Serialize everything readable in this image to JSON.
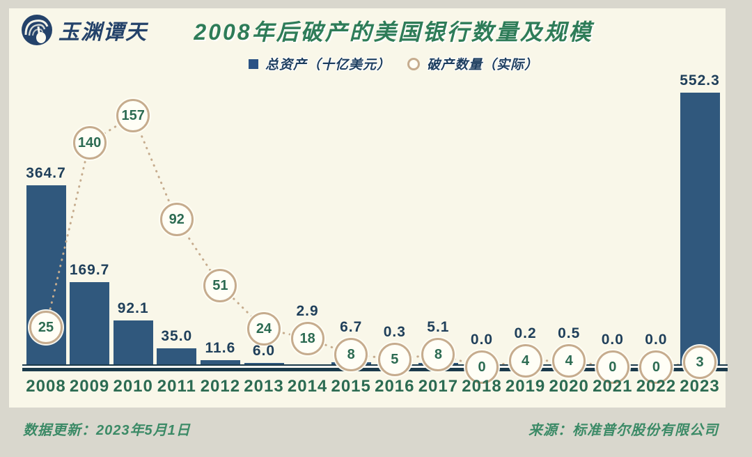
{
  "header": {
    "logo_text": "玉渊谭天",
    "title": "2008年后破产的美国银行数量及规模"
  },
  "legend": {
    "assets_label": "总资产（十亿美元）",
    "count_label": "破产数量（实际）"
  },
  "footer": {
    "updated_label": "数据更新：2023年5月1日",
    "source_label": "来源：标准普尔股份有限公司"
  },
  "colors": {
    "page_bg": "#d9d7cd",
    "card_bg": "#f9f7e9",
    "bar": "#30587d",
    "bar_label": "#1f3f5a",
    "green": "#2c6b52",
    "title_green": "#2e7c58",
    "footer_green": "#3b8a66",
    "tan": "#c6ac8e",
    "circle_fill": "#fffef6",
    "legend_navy": "#1d3e5f",
    "legend_square": "#2a5285",
    "axis": "#1b3a4b",
    "logo_navy": "#24426a"
  },
  "chart_data": {
    "type": "bar",
    "title": "2008年后破产的美国银行数量及规模",
    "categories": [
      "2008",
      "2009",
      "2010",
      "2011",
      "2012",
      "2013",
      "2014",
      "2015",
      "2016",
      "2017",
      "2018",
      "2019",
      "2020",
      "2021",
      "2022",
      "2023"
    ],
    "series": [
      {
        "name": "总资产（十亿美元）",
        "type": "bar",
        "values": [
          364.7,
          169.7,
          92.1,
          35.0,
          11.6,
          6.0,
          2.9,
          6.7,
          0.3,
          5.1,
          0.0,
          0.2,
          0.5,
          0.0,
          0.0,
          552.3
        ]
      },
      {
        "name": "破产数量（实际）",
        "type": "line",
        "marker": "circle",
        "values": [
          25,
          140,
          157,
          92,
          51,
          24,
          18,
          8,
          5,
          8,
          0,
          4,
          4,
          0,
          0,
          3
        ]
      }
    ],
    "value_label_decimals": 1,
    "xlabel": "",
    "ylabel": "",
    "legend_position": "top",
    "grid": false
  }
}
